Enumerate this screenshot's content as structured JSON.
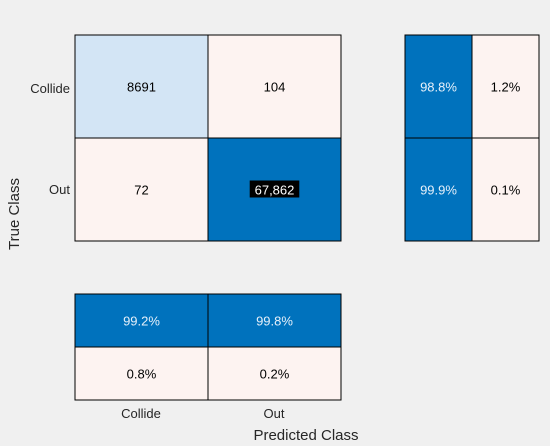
{
  "chart_data": {
    "type": "heatmap",
    "title": "",
    "xlabel": "Predicted Class",
    "ylabel": "True Class",
    "classes": [
      "Collide",
      "Out"
    ],
    "confusion_matrix": {
      "cells": [
        [
          {
            "value": 8691,
            "label": "8691"
          },
          {
            "value": 104,
            "label": "104"
          }
        ],
        [
          {
            "value": 72,
            "label": "72"
          },
          {
            "value": 67862,
            "label": "67,862"
          }
        ]
      ]
    },
    "row_summary": {
      "cells": [
        [
          {
            "value": 98.8,
            "label": "98.8%"
          },
          {
            "value": 1.2,
            "label": "1.2%"
          }
        ],
        [
          {
            "value": 99.9,
            "label": "99.9%"
          },
          {
            "value": 0.1,
            "label": "0.1%"
          }
        ]
      ]
    },
    "column_summary": {
      "cells": [
        [
          {
            "value": 99.2,
            "label": "99.2%"
          },
          {
            "value": 99.8,
            "label": "99.8%"
          }
        ],
        [
          {
            "value": 0.8,
            "label": "0.8%"
          },
          {
            "value": 0.2,
            "label": "0.2%"
          }
        ]
      ]
    },
    "colors": {
      "background": "#f0f0f0",
      "correct_high": "#0072bd",
      "correct_low": "#d3e5f5",
      "incorrect_low": "#fdf3f1",
      "text_dark": "#000000",
      "text_light": "#e6f0fa",
      "outline": "#000000",
      "label_box_bg": "#000000",
      "label_box_text": "#ffffff"
    }
  }
}
